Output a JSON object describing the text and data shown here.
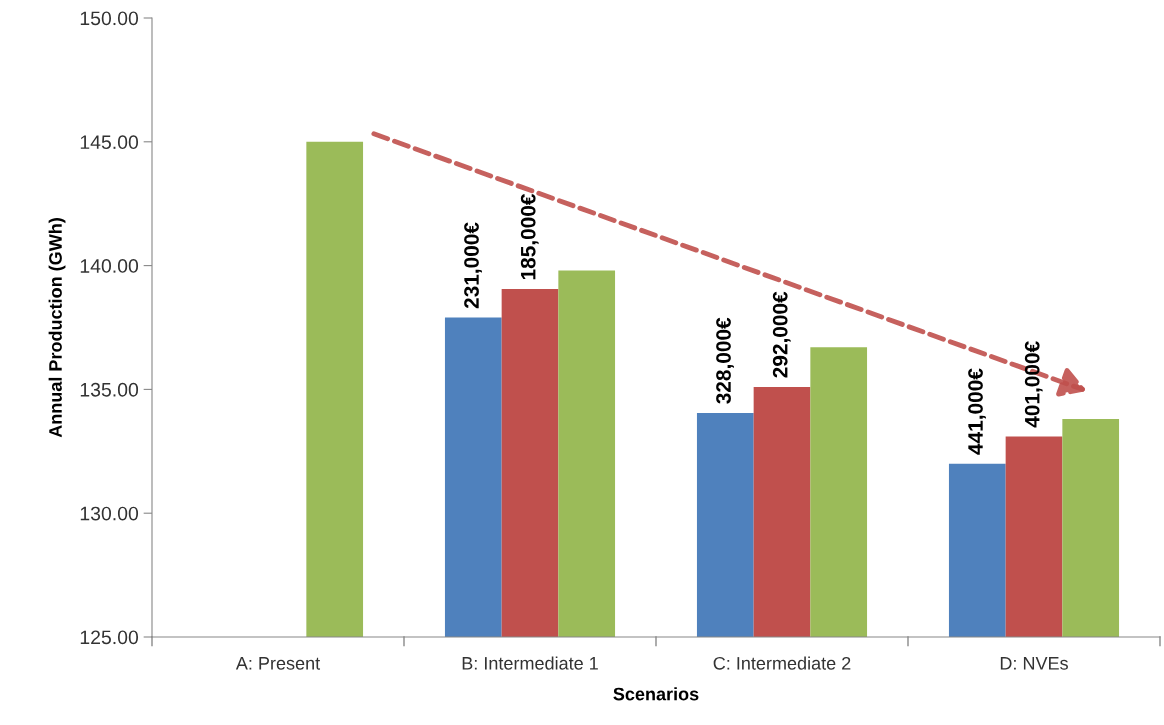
{
  "chart_data": {
    "type": "bar",
    "xlabel": "Scenarios",
    "ylabel": "Annual Production (GWh)",
    "categories": [
      "A: Present",
      "B: Intermediate 1",
      "C: Intermediate 2",
      "D: NVEs"
    ],
    "series": [
      {
        "color": "#4f81bd",
        "values": [
          null,
          137.9,
          134.05,
          132.0
        ]
      },
      {
        "color": "#c0504d",
        "values": [
          null,
          139.05,
          135.1,
          133.1
        ]
      },
      {
        "color": "#9bbb59",
        "values": [
          145.0,
          139.8,
          136.7,
          133.8
        ]
      }
    ],
    "annotations": [
      "231,000€",
      "185,000€",
      "328,000€",
      "292,000€",
      "441,000€",
      "401,000€"
    ],
    "ylim": [
      125,
      150
    ],
    "yticks": [
      {
        "value": 125,
        "label": "125.00"
      },
      {
        "value": 130,
        "label": "130.00"
      },
      {
        "value": 135,
        "label": "135.00"
      },
      {
        "value": 140,
        "label": "140.00"
      },
      {
        "value": 145,
        "label": "145.00"
      },
      {
        "value": 150,
        "label": "150.00"
      }
    ],
    "grid": false,
    "legend": false
  }
}
